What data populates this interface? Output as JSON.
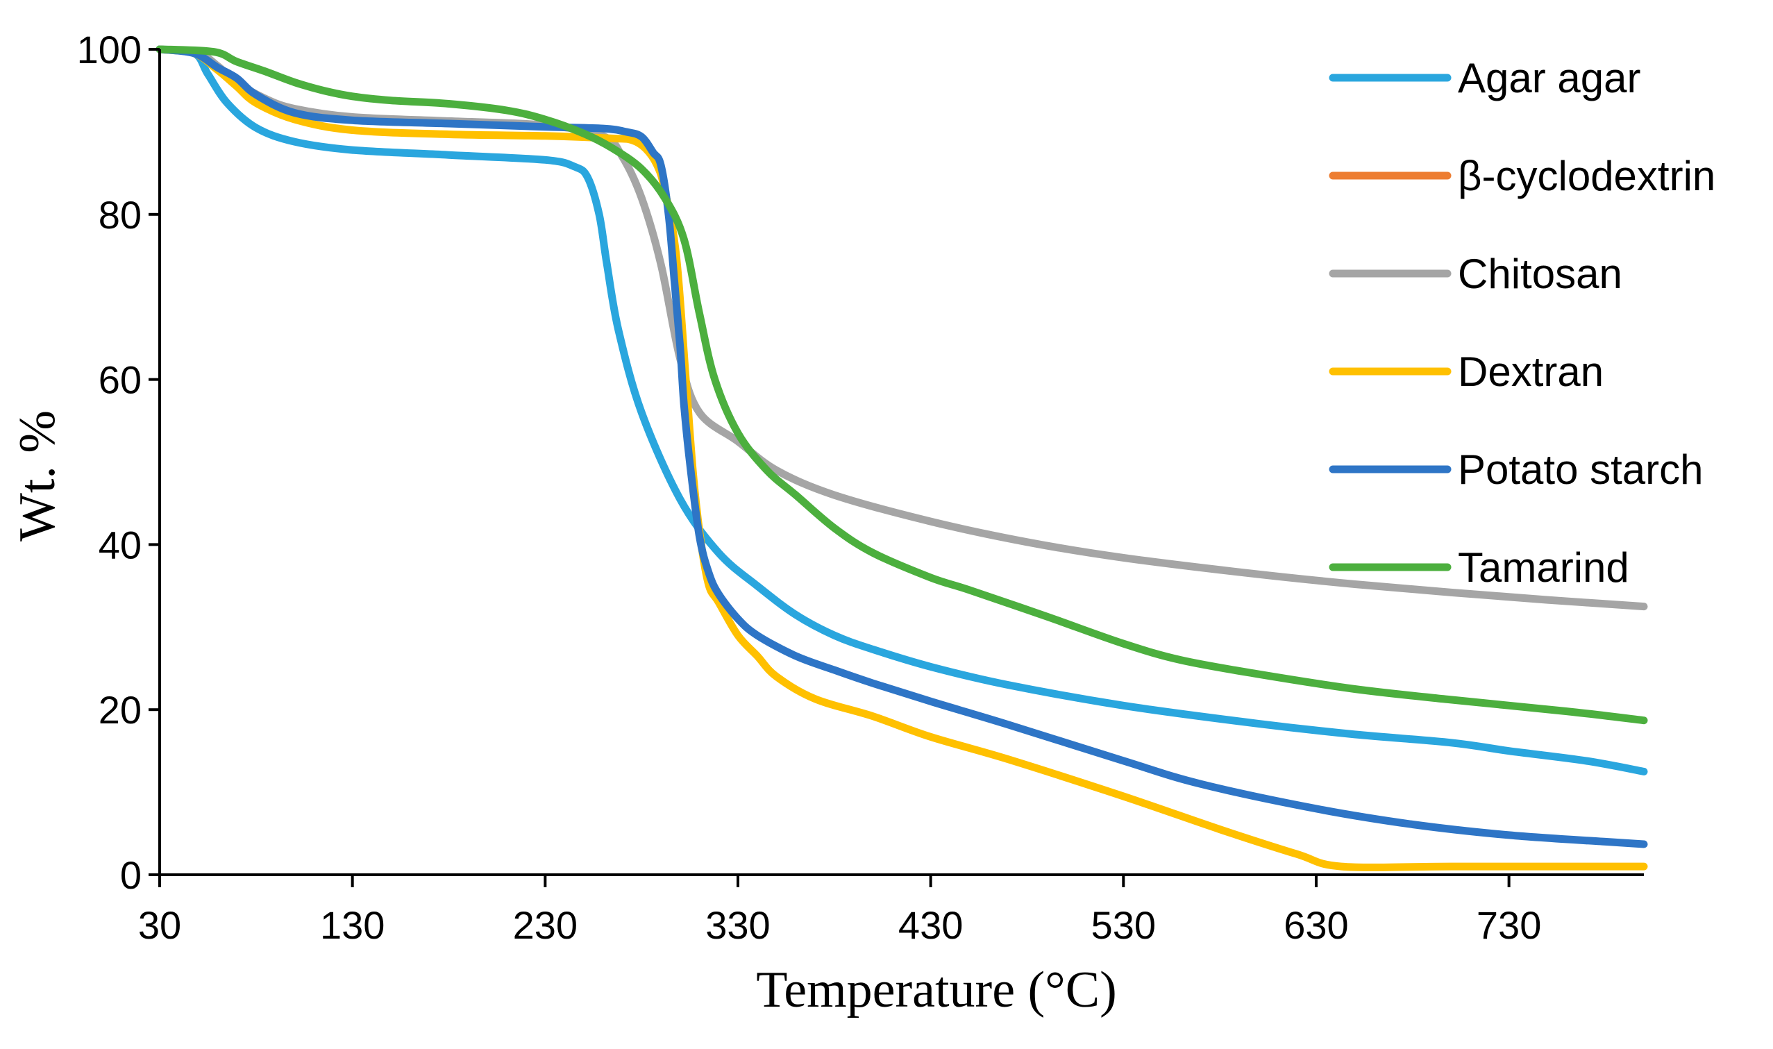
{
  "chart_data": {
    "type": "line",
    "title": "",
    "xlabel": "Temperature (°C)",
    "ylabel": "Wt. %",
    "xlim": [
      30,
      800
    ],
    "ylim": [
      0,
      100
    ],
    "xticks": [
      30,
      130,
      230,
      330,
      430,
      530,
      630,
      730
    ],
    "yticks": [
      0,
      20,
      40,
      60,
      80,
      100
    ],
    "grid": false,
    "legend_position": "right",
    "series": [
      {
        "name": "Agar agar",
        "color": "#2AA6DE",
        "x": [
          30,
          48,
          55,
          65,
          80,
          100,
          130,
          180,
          230,
          245,
          252,
          258,
          262,
          268,
          280,
          300,
          320,
          340,
          360,
          380,
          400,
          430,
          470,
          530,
          600,
          650,
          700,
          730,
          770,
          800
        ],
        "y": [
          100,
          99.5,
          97,
          93.5,
          90.5,
          88.8,
          87.8,
          87.2,
          86.6,
          85.8,
          84.5,
          80,
          74,
          66,
          56,
          45.5,
          39,
          35,
          31.5,
          29,
          27.3,
          25.2,
          23,
          20.5,
          18.3,
          17,
          16,
          15,
          13.8,
          12.5
        ]
      },
      {
        "name": "β-cyclodextrin",
        "color": "#ED7D31",
        "x": [],
        "y": []
      },
      {
        "name": "Chitosan",
        "color": "#A5A5A5",
        "x": [
          30,
          50,
          60,
          70,
          85,
          100,
          130,
          180,
          230,
          260,
          270,
          280,
          290,
          300,
          310,
          330,
          350,
          380,
          430,
          480,
          530,
          600,
          650,
          700,
          750,
          800
        ],
        "y": [
          100,
          99.5,
          98,
          96,
          94,
          92.8,
          91.8,
          91.3,
          90.8,
          89.5,
          87,
          82,
          74,
          62.5,
          56,
          52.5,
          49,
          46,
          42.8,
          40.3,
          38.4,
          36.4,
          35.2,
          34.2,
          33.3,
          32.5
        ]
      },
      {
        "name": "Dextran",
        "color": "#FFC000",
        "x": [
          30,
          48,
          60,
          70,
          80,
          100,
          130,
          180,
          230,
          265,
          275,
          282,
          288,
          292,
          298,
          303,
          307,
          311,
          315,
          320,
          330,
          340,
          350,
          370,
          400,
          430,
          470,
          530,
          580,
          620,
          643,
          700,
          760,
          800
        ],
        "y": [
          100,
          99.5,
          97.5,
          95.5,
          93.5,
          91.5,
          90.2,
          89.7,
          89.5,
          89.2,
          89,
          88,
          86,
          83,
          75,
          60,
          48,
          40,
          35,
          33,
          29,
          26.5,
          24,
          21.3,
          19.2,
          16.7,
          14,
          9.5,
          5.5,
          2.5,
          1,
          1,
          1,
          1
        ]
      },
      {
        "name": "Potato starch",
        "color": "#2E75C6",
        "x": [
          30,
          48,
          60,
          70,
          80,
          100,
          130,
          180,
          230,
          260,
          272,
          280,
          286,
          290,
          294,
          297,
          300,
          302,
          305,
          310,
          315,
          320,
          330,
          340,
          360,
          380,
          400,
          430,
          470,
          530,
          570,
          630,
          680,
          730,
          780,
          800
        ],
        "y": [
          100,
          99.5,
          97.8,
          96.5,
          94.5,
          92.3,
          91.4,
          91,
          90.6,
          90.4,
          90,
          89.4,
          87.5,
          86,
          80,
          72,
          64,
          57,
          50,
          41,
          36.5,
          34,
          31,
          29,
          26.5,
          24.8,
          23.2,
          21,
          18.2,
          13.8,
          11,
          8,
          6.1,
          4.8,
          4,
          3.7
        ]
      },
      {
        "name": "Tamarind",
        "color": "#4CAF3E",
        "x": [
          30,
          58,
          70,
          85,
          100,
          115,
          130,
          150,
          180,
          210,
          230,
          250,
          265,
          280,
          292,
          302,
          310,
          318,
          330,
          345,
          360,
          380,
          400,
          430,
          450,
          490,
          530,
          560,
          600,
          650,
          700,
          760,
          800
        ],
        "y": [
          100,
          99.7,
          98.5,
          97.3,
          96,
          95,
          94.3,
          93.8,
          93.4,
          92.6,
          91.5,
          89.8,
          88,
          85.5,
          82,
          77,
          68,
          60,
          53.5,
          49,
          46,
          42,
          39,
          36,
          34.5,
          31.3,
          28,
          26,
          24.3,
          22.5,
          21.2,
          19.8,
          18.7
        ]
      }
    ]
  }
}
